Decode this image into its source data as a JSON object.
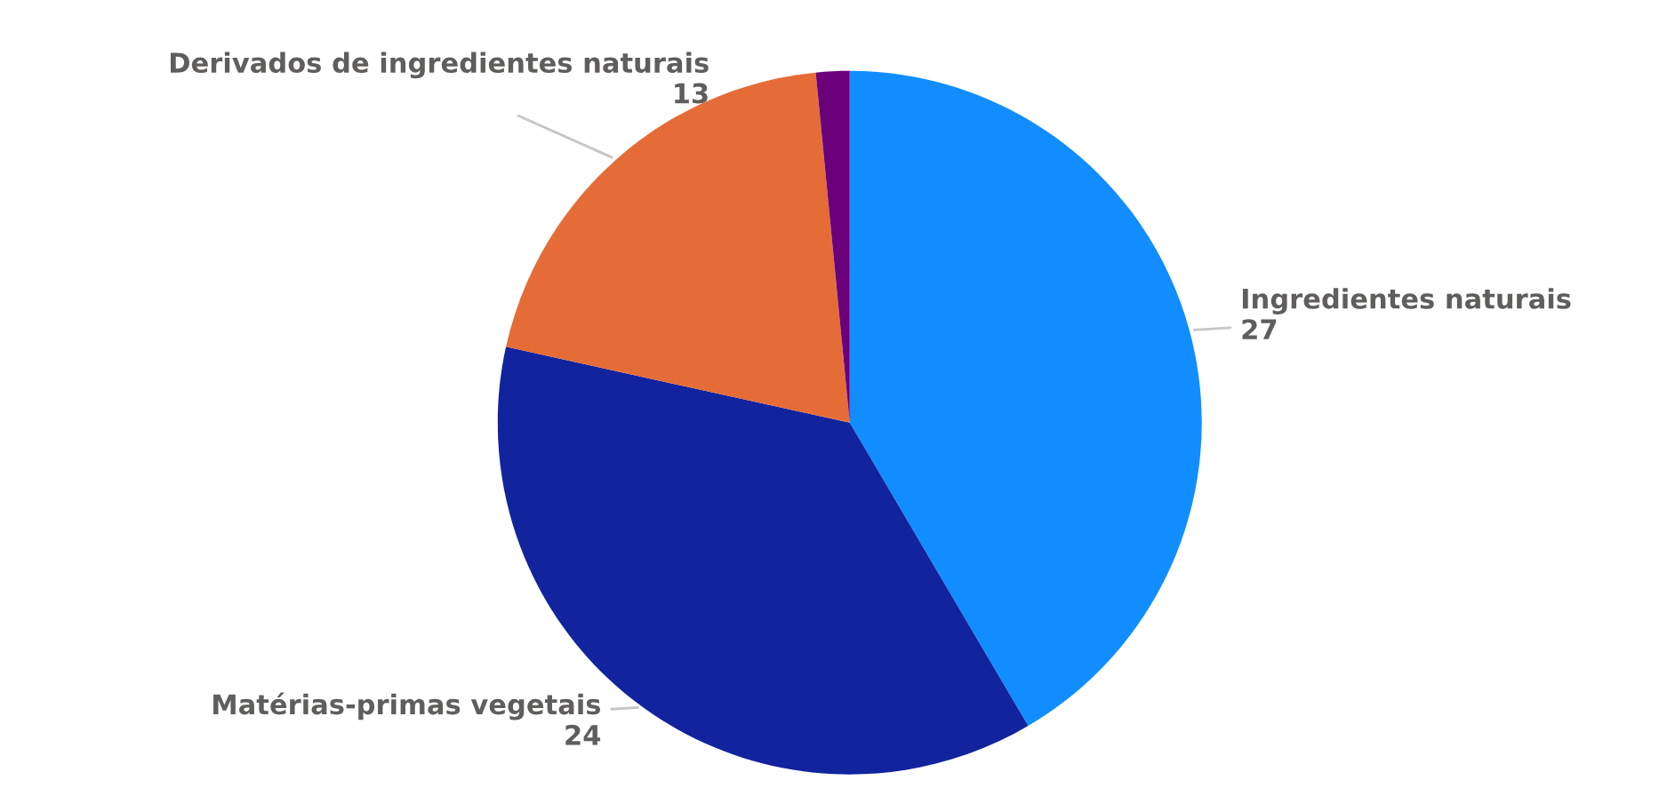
{
  "chart_data": {
    "type": "pie",
    "categories": [
      "Ingredientes naturais",
      "Matérias-primas vegetais",
      "Derivados de ingredientes naturais",
      null
    ],
    "values": [
      27,
      24,
      13,
      1
    ],
    "colors": [
      "#118dff",
      "#12239e",
      "#e66c37",
      "#6b007b"
    ],
    "value_labels": [
      "27",
      "24",
      "13",
      null
    ]
  }
}
